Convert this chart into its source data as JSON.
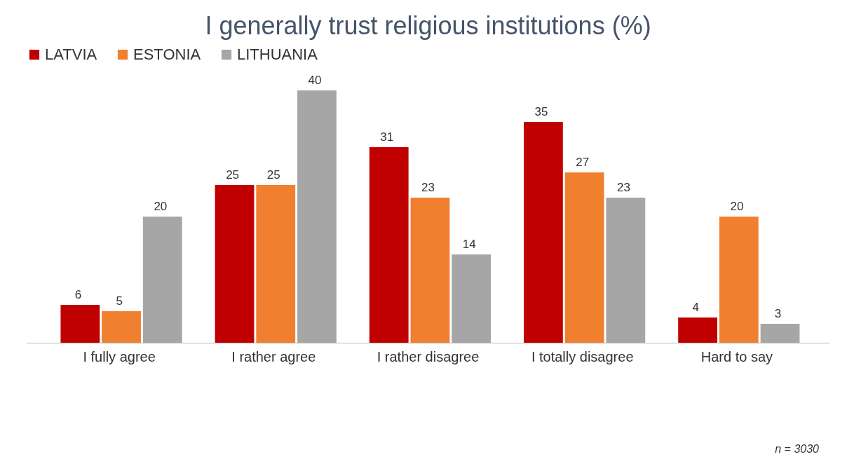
{
  "chart_data": {
    "type": "bar",
    "title": "I generally trust religious institutions (%)",
    "categories": [
      "I fully agree",
      "I rather agree",
      "I rather disagree",
      "I totally disagree",
      "Hard to say"
    ],
    "series": [
      {
        "name": "LATVIA",
        "color": "#c00000",
        "values": [
          6,
          25,
          31,
          35,
          4
        ]
      },
      {
        "name": "ESTONIA",
        "color": "#f08030",
        "values": [
          5,
          25,
          23,
          27,
          20
        ]
      },
      {
        "name": "LITHUANIA",
        "color": "#a6a6a6",
        "values": [
          20,
          40,
          14,
          23,
          3
        ]
      }
    ],
    "data_labels": true,
    "legend": "top",
    "annotations": [
      "n = 3030"
    ]
  }
}
